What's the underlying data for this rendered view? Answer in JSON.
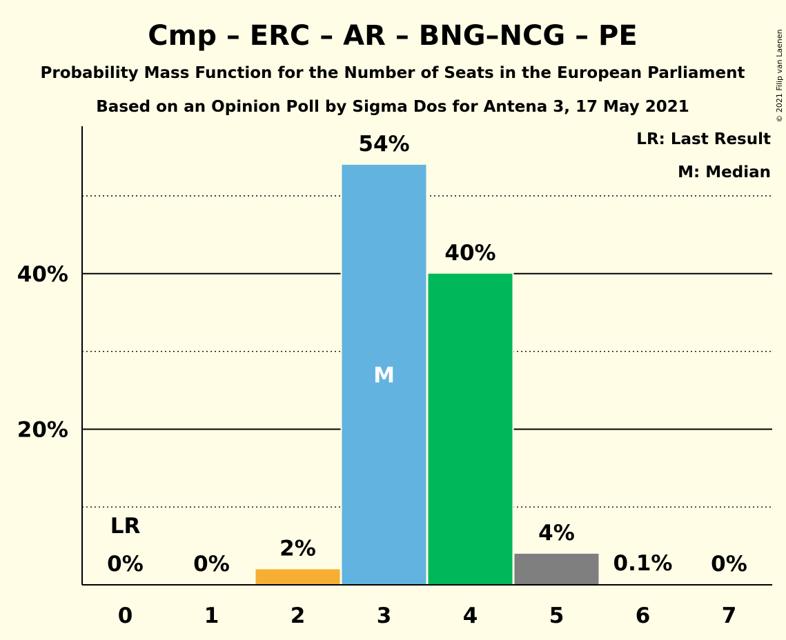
{
  "header": {
    "title": "Cmp – ERC – AR – BNG–NCG – PE",
    "subtitle1": "Probability Mass Function for the Number of Seats in the European Parliament",
    "subtitle2": "Based on an Opinion Poll by Sigma Dos for Antena 3, 17 May 2021",
    "copyright": "© 2021 Filip van Laenen"
  },
  "legend": {
    "last_result": "LR: Last Result",
    "median": "M: Median",
    "placement": "top-right"
  },
  "chart_data": {
    "type": "bar",
    "categories": [
      "0",
      "1",
      "2",
      "3",
      "4",
      "5",
      "6",
      "7"
    ],
    "values": [
      0,
      0,
      2,
      54,
      40,
      4,
      0.1,
      0
    ],
    "value_labels": [
      "0%",
      "0%",
      "2%",
      "54%",
      "40%",
      "4%",
      "0.1%",
      "0%"
    ],
    "bar_colors": [
      "#FFFDE6",
      "#FFFDE6",
      "#F6AF32",
      "#62B3E0",
      "#00B85A",
      "#7F7F7F",
      "#FFFDE6",
      "#FFFDE6"
    ],
    "ylim": [
      0,
      60
    ],
    "yticks": [
      20,
      40
    ],
    "ytick_labels": [
      "20%",
      "40%"
    ],
    "minor_gridlines": [
      10,
      30,
      50
    ],
    "last_result_index": 0,
    "last_result_label": "LR",
    "median_index": 3,
    "median_label": "M",
    "grid": true
  },
  "colors": {
    "background": "#FFFDE6",
    "gridline": "#000000",
    "median_text": "#FFFFFF"
  }
}
